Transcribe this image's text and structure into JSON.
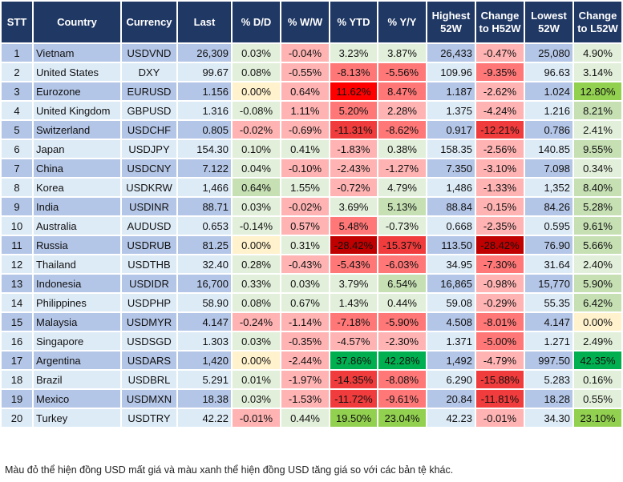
{
  "palette": {
    "lg": "#e2efda",
    "mg": "#c6e0b4",
    "lime": "#92d050",
    "dg": "#00b050",
    "y": "#fff2cc",
    "lr": "#ffb3b3",
    "mr": "#ff7777",
    "r": "#f03c3c",
    "br": "#ff0000",
    "dr": "#c00000",
    "band_odd": "#b4c6e7",
    "band_even": "#ddebf7",
    "header": "#203864"
  },
  "headers": [
    "STT",
    "Country",
    "Currency",
    "Last",
    "% D/D",
    "% W/W",
    "% YTD",
    "% Y/Y",
    "Highest 52W",
    "Change to H52W",
    "Lowest 52W",
    "Change to L52W"
  ],
  "rows": [
    {
      "stt": "1",
      "country": "Vietnam",
      "currency": "USDVND",
      "last": "26,309",
      "dd": "0.03%",
      "ww": "-0.04%",
      "ytd": "3.23%",
      "yy": "3.87%",
      "high": "26,433",
      "chh": "-0.47%",
      "low": "25,080",
      "chl": "4.90%",
      "colors": [
        "lg",
        "lr",
        "lg",
        "lg",
        "lr",
        "lg"
      ]
    },
    {
      "stt": "2",
      "country": "United States",
      "currency": "DXY",
      "last": "99.67",
      "dd": "0.08%",
      "ww": "-0.55%",
      "ytd": "-8.13%",
      "yy": "-5.56%",
      "high": "109.96",
      "chh": "-9.35%",
      "low": "96.63",
      "chl": "3.14%",
      "colors": [
        "lg",
        "lr",
        "mr",
        "mr",
        "mr",
        "lg"
      ]
    },
    {
      "stt": "3",
      "country": "Eurozone",
      "currency": "EURUSD",
      "last": "1.156",
      "dd": "0.00%",
      "ww": "0.64%",
      "ytd": "11.62%",
      "yy": "8.47%",
      "high": "1.187",
      "chh": "-2.62%",
      "low": "1.024",
      "chl": "12.80%",
      "colors": [
        "y",
        "lr",
        "br",
        "mr",
        "lr",
        "lime"
      ]
    },
    {
      "stt": "4",
      "country": "United Kingdom",
      "currency": "GBPUSD",
      "last": "1.316",
      "dd": "-0.08%",
      "ww": "1.11%",
      "ytd": "5.20%",
      "yy": "2.28%",
      "high": "1.375",
      "chh": "-4.24%",
      "low": "1.216",
      "chl": "8.21%",
      "colors": [
        "lg",
        "lr",
        "mr",
        "lr",
        "lr",
        "mg"
      ]
    },
    {
      "stt": "5",
      "country": "Switzerland",
      "currency": "USDCHF",
      "last": "0.805",
      "dd": "-0.02%",
      "ww": "-0.69%",
      "ytd": "-11.31%",
      "yy": "-8.62%",
      "high": "0.917",
      "chh": "-12.21%",
      "low": "0.786",
      "chl": "2.41%",
      "colors": [
        "lr",
        "lr",
        "r",
        "mr",
        "r",
        "lg"
      ]
    },
    {
      "stt": "6",
      "country": "Japan",
      "currency": "USDJPY",
      "last": "154.30",
      "dd": "0.10%",
      "ww": "0.41%",
      "ytd": "-1.83%",
      "yy": "0.38%",
      "high": "158.35",
      "chh": "-2.56%",
      "low": "140.85",
      "chl": "9.55%",
      "colors": [
        "lg",
        "lg",
        "lr",
        "lg",
        "lr",
        "mg"
      ]
    },
    {
      "stt": "7",
      "country": "China",
      "currency": "USDCNY",
      "last": "7.122",
      "dd": "0.04%",
      "ww": "-0.10%",
      "ytd": "-2.43%",
      "yy": "-1.27%",
      "high": "7.350",
      "chh": "-3.10%",
      "low": "7.098",
      "chl": "0.34%",
      "colors": [
        "lg",
        "lr",
        "lr",
        "lr",
        "lr",
        "lg"
      ]
    },
    {
      "stt": "8",
      "country": "Korea",
      "currency": "USDKRW",
      "last": "1,466",
      "dd": "0.64%",
      "ww": "1.55%",
      "ytd": "-0.72%",
      "yy": "4.79%",
      "high": "1,486",
      "chh": "-1.33%",
      "low": "1,352",
      "chl": "8.40%",
      "colors": [
        "mg",
        "lg",
        "lr",
        "lg",
        "lr",
        "mg"
      ]
    },
    {
      "stt": "9",
      "country": "India",
      "currency": "USDINR",
      "last": "88.71",
      "dd": "0.03%",
      "ww": "-0.02%",
      "ytd": "3.69%",
      "yy": "5.13%",
      "high": "88.84",
      "chh": "-0.15%",
      "low": "84.26",
      "chl": "5.28%",
      "colors": [
        "lg",
        "lr",
        "lg",
        "mg",
        "lr",
        "mg"
      ]
    },
    {
      "stt": "10",
      "country": "Australia",
      "currency": "AUDUSD",
      "last": "0.653",
      "dd": "-0.14%",
      "ww": "0.57%",
      "ytd": "5.48%",
      "yy": "-0.73%",
      "high": "0.668",
      "chh": "-2.35%",
      "low": "0.595",
      "chl": "9.61%",
      "colors": [
        "lg",
        "lr",
        "mr",
        "lg",
        "lr",
        "mg"
      ]
    },
    {
      "stt": "11",
      "country": "Russia",
      "currency": "USDRUB",
      "last": "81.25",
      "dd": "0.00%",
      "ww": "0.31%",
      "ytd": "-28.42%",
      "yy": "-15.37%",
      "high": "113.50",
      "chh": "-28.42%",
      "low": "76.90",
      "chl": "5.66%",
      "colors": [
        "y",
        "lg",
        "dr",
        "r",
        "dr",
        "mg"
      ]
    },
    {
      "stt": "12",
      "country": "Thailand",
      "currency": "USDTHB",
      "last": "32.40",
      "dd": "0.28%",
      "ww": "-0.43%",
      "ytd": "-5.43%",
      "yy": "-6.03%",
      "high": "34.95",
      "chh": "-7.30%",
      "low": "31.64",
      "chl": "2.40%",
      "colors": [
        "lg",
        "lr",
        "mr",
        "mr",
        "mr",
        "lg"
      ]
    },
    {
      "stt": "13",
      "country": "Indonesia",
      "currency": "USDIDR",
      "last": "16,700",
      "dd": "0.33%",
      "ww": "0.03%",
      "ytd": "3.79%",
      "yy": "6.54%",
      "high": "16,865",
      "chh": "-0.98%",
      "low": "15,770",
      "chl": "5.90%",
      "colors": [
        "lg",
        "lg",
        "lg",
        "mg",
        "lr",
        "mg"
      ]
    },
    {
      "stt": "14",
      "country": "Philippines",
      "currency": "USDPHP",
      "last": "58.90",
      "dd": "0.08%",
      "ww": "0.67%",
      "ytd": "1.43%",
      "yy": "0.44%",
      "high": "59.08",
      "chh": "-0.29%",
      "low": "55.35",
      "chl": "6.42%",
      "colors": [
        "lg",
        "lg",
        "lg",
        "lg",
        "lr",
        "mg"
      ]
    },
    {
      "stt": "15",
      "country": "Malaysia",
      "currency": "USDMYR",
      "last": "4.147",
      "dd": "-0.24%",
      "ww": "-1.14%",
      "ytd": "-7.18%",
      "yy": "-5.90%",
      "high": "4.508",
      "chh": "-8.01%",
      "low": "4.147",
      "chl": "0.00%",
      "colors": [
        "lr",
        "lr",
        "mr",
        "mr",
        "mr",
        "y"
      ]
    },
    {
      "stt": "16",
      "country": "Singapore",
      "currency": "USDSGD",
      "last": "1.303",
      "dd": "0.03%",
      "ww": "-0.35%",
      "ytd": "-4.57%",
      "yy": "-2.30%",
      "high": "1.371",
      "chh": "-5.00%",
      "low": "1.271",
      "chl": "2.49%",
      "colors": [
        "lg",
        "lr",
        "lr",
        "lr",
        "mr",
        "lg"
      ]
    },
    {
      "stt": "17",
      "country": "Argentina",
      "currency": "USDARS",
      "last": "1,420",
      "dd": "0.00%",
      "ww": "-2.44%",
      "ytd": "37.86%",
      "yy": "42.28%",
      "high": "1,492",
      "chh": "-4.79%",
      "low": "997.50",
      "chl": "42.35%",
      "colors": [
        "y",
        "lr",
        "dg",
        "dg",
        "lr",
        "dg"
      ]
    },
    {
      "stt": "18",
      "country": "Brazil",
      "currency": "USDBRL",
      "last": "5.291",
      "dd": "0.01%",
      "ww": "-1.97%",
      "ytd": "-14.35%",
      "yy": "-8.08%",
      "high": "6.290",
      "chh": "-15.88%",
      "low": "5.283",
      "chl": "0.16%",
      "colors": [
        "lg",
        "lr",
        "r",
        "mr",
        "r",
        "lg"
      ]
    },
    {
      "stt": "19",
      "country": "Mexico",
      "currency": "USDMXN",
      "last": "18.38",
      "dd": "0.03%",
      "ww": "-1.53%",
      "ytd": "-11.72%",
      "yy": "-9.61%",
      "high": "20.84",
      "chh": "-11.81%",
      "low": "18.28",
      "chl": "0.55%",
      "colors": [
        "lg",
        "lr",
        "r",
        "mr",
        "r",
        "lg"
      ]
    },
    {
      "stt": "20",
      "country": "Turkey",
      "currency": "USDTRY",
      "last": "42.22",
      "dd": "-0.01%",
      "ww": "0.44%",
      "ytd": "19.50%",
      "yy": "23.04%",
      "high": "42.23",
      "chh": "-0.01%",
      "low": "34.30",
      "chl": "23.10%",
      "colors": [
        "lr",
        "lg",
        "lime",
        "lime",
        "lr",
        "lime"
      ]
    }
  ],
  "footnote": "Màu đỏ thể hiện đồng USD mất giá và màu xanh thể hiện đồng USD tăng giá so với các bản tệ khác."
}
